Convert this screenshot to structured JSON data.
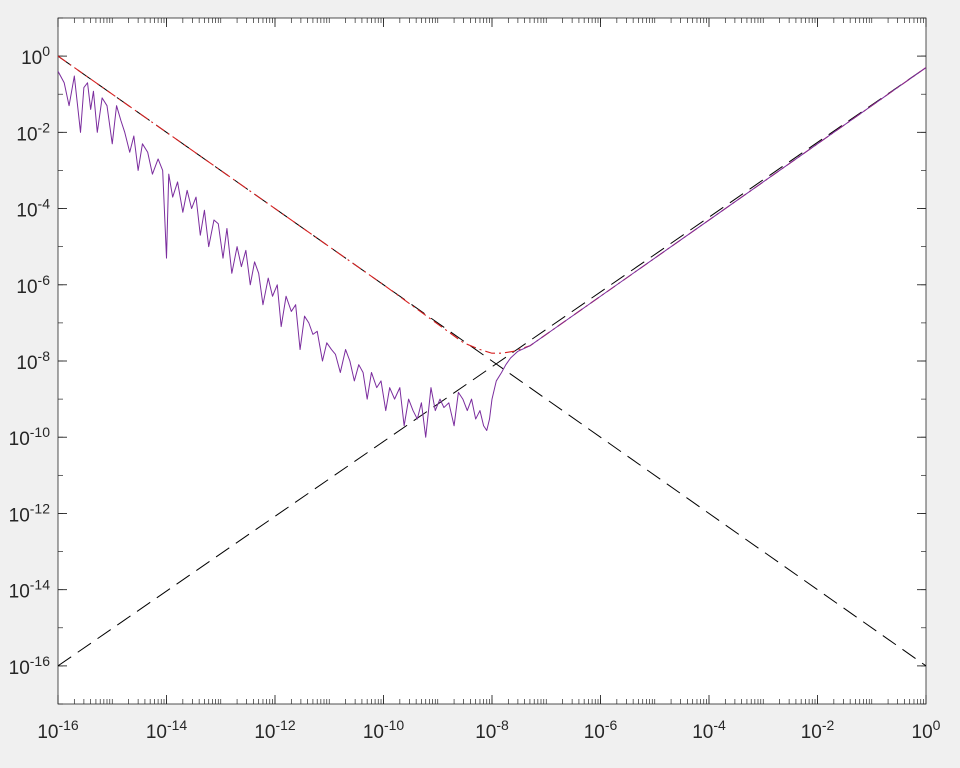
{
  "chart_data": {
    "type": "line",
    "title": "",
    "xlabel": "",
    "ylabel": "",
    "x_scale": "log",
    "y_scale": "log",
    "xlim": [
      1e-16,
      1
    ],
    "ylim": [
      1e-17,
      10
    ],
    "grid": false,
    "x_ticks": [
      {
        "value": 1e-16,
        "base": "10",
        "exp": "-16"
      },
      {
        "value": 1e-14,
        "base": "10",
        "exp": "-14"
      },
      {
        "value": 1e-12,
        "base": "10",
        "exp": "-12"
      },
      {
        "value": 1e-10,
        "base": "10",
        "exp": "-10"
      },
      {
        "value": 1e-08,
        "base": "10",
        "exp": "-8"
      },
      {
        "value": 1e-06,
        "base": "10",
        "exp": "-6"
      },
      {
        "value": 0.0001,
        "base": "10",
        "exp": "-4"
      },
      {
        "value": 0.01,
        "base": "10",
        "exp": "-2"
      },
      {
        "value": 1,
        "base": "10",
        "exp": "0"
      }
    ],
    "y_ticks": [
      {
        "value": 1,
        "base": "10",
        "exp": "0"
      },
      {
        "value": 0.01,
        "base": "10",
        "exp": "-2"
      },
      {
        "value": 0.0001,
        "base": "10",
        "exp": "-4"
      },
      {
        "value": 1e-06,
        "base": "10",
        "exp": "-6"
      },
      {
        "value": 1e-08,
        "base": "10",
        "exp": "-8"
      },
      {
        "value": 1e-10,
        "base": "10",
        "exp": "-10"
      },
      {
        "value": 1e-12,
        "base": "10",
        "exp": "-12"
      },
      {
        "value": 1e-14,
        "base": "10",
        "exp": "-14"
      },
      {
        "value": 1e-16,
        "base": "10",
        "exp": "-16"
      }
    ],
    "series": [
      {
        "kind": "dashed-line",
        "color": "#000000",
        "x": [
          1e-16,
          1
        ],
        "y": [
          1,
          1e-16
        ]
      },
      {
        "kind": "dashed-line",
        "color": "#000000",
        "x": [
          1e-16,
          1
        ],
        "y": [
          1e-16,
          0.5
        ]
      },
      {
        "kind": "dash-dot-line",
        "color": "#d62020",
        "x": [
          1e-16,
          1e-12,
          1e-10,
          3e-09,
          6e-09,
          1e-08,
          1.5e-08,
          2.5e-08,
          5e-08,
          1e-06,
          0.01,
          1
        ],
        "y": [
          1,
          0.0001,
          1e-06,
          3e-08,
          2e-08,
          1.6e-08,
          1.6e-08,
          1.8e-08,
          2.5e-08,
          5e-07,
          0.005,
          0.5
        ]
      },
      {
        "kind": "solid-line",
        "color": "#7b2d9e",
        "x": [
          1e-16,
          1.3e-16,
          1.6e-16,
          2e-16,
          2.6e-16,
          3e-16,
          3.5e-16,
          4e-16,
          4.5e-16,
          5.3e-16,
          6.5e-16,
          8e-16,
          1e-15,
          1.2e-15,
          1.45e-15,
          1.7e-15,
          2.1e-15,
          2.5e-15,
          3e-15,
          3.6e-15,
          4.5e-15,
          5.5e-15,
          7e-15,
          8.5e-15,
          1e-14,
          1.1e-14,
          1.3e-14,
          1.6e-14,
          2e-14,
          2.4e-14,
          2.9e-14,
          3.5e-14,
          4.2e-14,
          5e-14,
          6e-14,
          7.5e-14,
          9e-14,
          1.1e-13,
          1.3e-13,
          1.6e-13,
          2e-13,
          2.4e-13,
          2.9e-13,
          3.5e-13,
          4.2e-13,
          5e-13,
          6e-13,
          7.5e-13,
          9e-13,
          1.1e-12,
          1.3e-12,
          1.6e-12,
          2e-12,
          2.4e-12,
          2.9e-12,
          3.5e-12,
          4.2e-12,
          5e-12,
          6e-12,
          7.5e-12,
          9e-12,
          1.1e-11,
          1.3e-11,
          1.6e-11,
          2e-11,
          2.4e-11,
          2.9e-11,
          3.5e-11,
          4.2e-11,
          5e-11,
          6e-11,
          7.5e-11,
          9e-11,
          1.1e-10,
          1.3e-10,
          1.6e-10,
          2e-10,
          2.4e-10,
          2.9e-10,
          3.5e-10,
          4.2e-10,
          5e-10,
          6e-10,
          7.5e-10,
          9e-10,
          1.1e-09,
          1.3e-09,
          1.6e-09,
          2e-09,
          2.4e-09,
          2.9e-09,
          3.5e-09,
          4.2e-09,
          5e-09,
          6e-09,
          7e-09,
          8e-09,
          9e-09,
          1e-08,
          1.2e-08,
          1.5e-08,
          1.8e-08,
          2.2e-08,
          3e-08,
          5e-08,
          1e-07,
          1e-06,
          0.0001,
          0.01,
          1
        ],
        "y": [
          0.4,
          0.2,
          0.05,
          0.3,
          0.01,
          0.15,
          0.2,
          0.04,
          0.12,
          0.01,
          0.08,
          0.05,
          0.005,
          0.05,
          0.02,
          0.01,
          0.003,
          0.008,
          0.001,
          0.005,
          0.003,
          0.0008,
          0.002,
          0.001,
          5e-06,
          0.0008,
          0.0002,
          0.0005,
          8e-05,
          0.0003,
          0.0001,
          0.0002,
          2e-05,
          9e-05,
          1e-05,
          5e-05,
          4e-05,
          5e-06,
          3e-05,
          2e-06,
          1e-05,
          3e-06,
          8e-06,
          1e-06,
          4e-06,
          2e-06,
          3e-07,
          1.5e-06,
          5e-07,
          1e-06,
          8e-08,
          5e-07,
          2e-07,
          3e-07,
          2e-08,
          1.5e-07,
          1e-07,
          5e-08,
          6e-08,
          1e-08,
          3e-08,
          2e-08,
          1.5e-08,
          5e-09,
          2e-08,
          1e-08,
          3e-09,
          8e-09,
          5e-09,
          1e-09,
          5e-09,
          2e-09,
          3e-09,
          5e-10,
          2e-09,
          1e-09,
          2e-09,
          2e-10,
          1e-09,
          5e-10,
          3e-10,
          8e-10,
          1e-10,
          2e-09,
          5e-10,
          1e-09,
          6e-10,
          8e-10,
          2e-10,
          1.5e-09,
          1e-09,
          5e-10,
          1e-09,
          3e-10,
          5e-10,
          2e-10,
          1.5e-10,
          3e-10,
          1e-09,
          3e-09,
          5e-09,
          8e-09,
          1.2e-08,
          1.8e-08,
          2.5e-08,
          5e-08,
          5e-07,
          5e-05,
          0.005,
          0.5
        ]
      }
    ]
  }
}
